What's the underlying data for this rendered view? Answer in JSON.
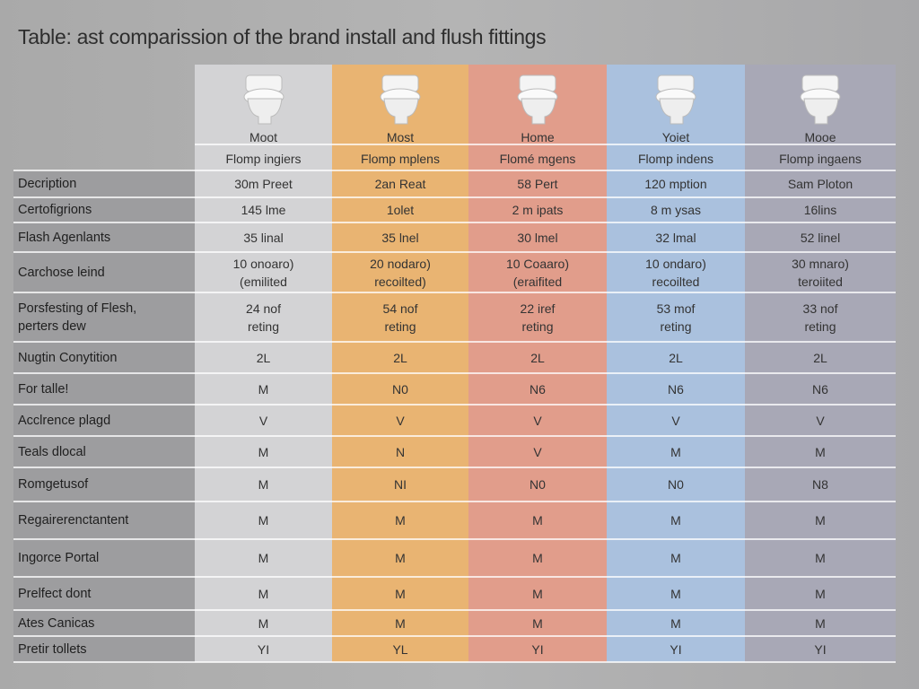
{
  "header": {
    "title": "Table: ast comparission of the brand install and flush fittings"
  },
  "table": {
    "columns": [
      {
        "name": "Moot",
        "subtitle": "Flomp ingiers"
      },
      {
        "name": "Most",
        "subtitle": "Flomp mplens"
      },
      {
        "name": "Home",
        "subtitle": "Flomé mgens"
      },
      {
        "name": "Yoiet",
        "subtitle": "Flomp indens"
      },
      {
        "name": "Mooe",
        "subtitle": "Flomp ingaens"
      }
    ],
    "rows": [
      {
        "label": "Decription",
        "cells": [
          "30m Preet",
          "2an Reat",
          "58 Pert",
          "120 mption",
          "Sam Ploton"
        ]
      },
      {
        "label": "Certofigrions",
        "cells": [
          "145 lme",
          "1olet",
          "2 m ipats",
          "8 m ysas",
          "16lins"
        ]
      },
      {
        "label": "Flash Agenlants",
        "cells": [
          "35 linal",
          "35 lnel",
          "30 lmel",
          "32 lmal",
          "52 linel"
        ]
      },
      {
        "label": "Carchose leind",
        "cells": [
          "10 onoaro)\n(emilited",
          "20 nodaro)\nrecoilted)",
          "10 Coaaro)\n(eraifited",
          "10 ondaro)\nrecoilted",
          "30 mnaro)\nteroiited"
        ]
      },
      {
        "label": "Porsfesting of Flesh,\nperters dew",
        "cells": [
          "24 nof\nreting",
          "54 nof\nreting",
          "22 iref\nreting",
          "53 mof\nreting",
          "33 nof\nreting"
        ]
      },
      {
        "label": "Nugtin Conytition",
        "cells": [
          "2L",
          "2L",
          "2L",
          "2L",
          "2L"
        ]
      },
      {
        "label": "For talle!",
        "cells": [
          "M",
          "N0",
          "N6",
          "N6",
          "N6"
        ]
      },
      {
        "label": "Acclrence plagd",
        "cells": [
          "V",
          "V",
          "V",
          "V",
          "V"
        ]
      },
      {
        "label": "Teals dlocal",
        "cells": [
          "M",
          "N",
          "V",
          "M",
          "M"
        ]
      },
      {
        "label": "Romgetusof",
        "cells": [
          "M",
          "NI",
          "N0",
          "N0",
          "N8"
        ]
      },
      {
        "label": "Regairerenctantent",
        "cells": [
          "M",
          "M",
          "M",
          "M",
          "M"
        ]
      },
      {
        "label": "Ingorce Portal",
        "cells": [
          "M",
          "M",
          "M",
          "M",
          "M"
        ]
      },
      {
        "label": "Prelfect dont",
        "cells": [
          "M",
          "M",
          "M",
          "M",
          "M"
        ]
      },
      {
        "label": "Ates Canicas",
        "cells": [
          "M",
          "M",
          "M",
          "M",
          "M"
        ]
      },
      {
        "label": "Pretir tollets",
        "cells": [
          "YI",
          "YL",
          "YI",
          "YI",
          "YI"
        ]
      }
    ]
  }
}
